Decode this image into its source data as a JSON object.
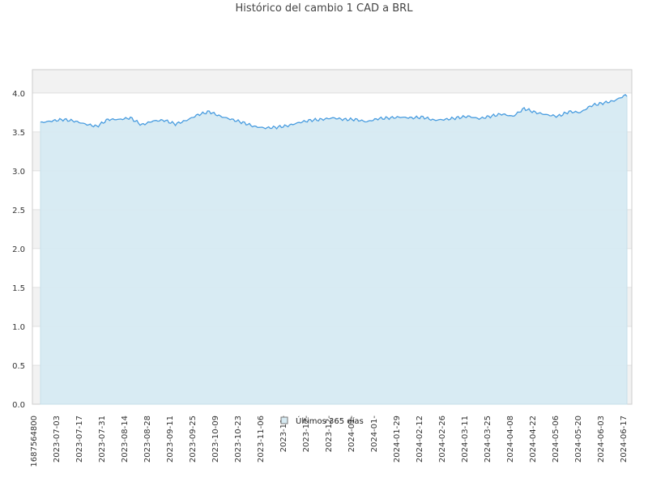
{
  "chart_data": {
    "type": "area",
    "title": "Histórico del cambio 1 CAD a BRL",
    "xlabel": "",
    "ylabel": "",
    "ylim": [
      0,
      4.3
    ],
    "yticks": [
      "0.0",
      "0.5",
      "1.0",
      "1.5",
      "2.0",
      "2.5",
      "3.0",
      "3.5",
      "4.0"
    ],
    "xtick_labels": [
      "1687564800",
      "2023-07-03",
      "2023-07-17",
      "2023-07-31",
      "2023-08-14",
      "2023-08-28",
      "2023-09-11",
      "2023-09-25",
      "2023-10-09",
      "2023-10-23",
      "2023-11-06",
      "2023-11-",
      "2023-12-",
      "2023-12-",
      "2024-01-",
      "2024-01-",
      "2024-01-29",
      "2024-02-12",
      "2024-02-26",
      "2024-03-11",
      "2024-03-25",
      "2024-04-08",
      "2024-04-22",
      "2024-05-06",
      "2024-05-20",
      "2024-06-03",
      "2024-06-17"
    ],
    "x_start": "2023-06-24",
    "x_end": "2024-06-23",
    "grid": true,
    "legend_position": "bottom-center",
    "colors": {
      "line": "#4a9de0",
      "fill": "#d6eaf2",
      "band": "#f2f2f2",
      "grid": "#e0e0e0"
    },
    "series": [
      {
        "name": "Últimos 365 días",
        "x": [
          "2023-06-24",
          "2023-07-01",
          "2023-07-08",
          "2023-07-15",
          "2023-07-22",
          "2023-07-29",
          "2023-08-05",
          "2023-08-12",
          "2023-08-19",
          "2023-08-26",
          "2023-09-02",
          "2023-09-09",
          "2023-09-16",
          "2023-09-23",
          "2023-09-30",
          "2023-10-07",
          "2023-10-14",
          "2023-10-21",
          "2023-10-28",
          "2023-11-04",
          "2023-11-11",
          "2023-11-18",
          "2023-11-25",
          "2023-12-02",
          "2023-12-09",
          "2023-12-16",
          "2023-12-23",
          "2023-12-30",
          "2024-01-06",
          "2024-01-13",
          "2024-01-20",
          "2024-01-27",
          "2024-02-03",
          "2024-02-10",
          "2024-02-17",
          "2024-02-24",
          "2024-03-02",
          "2024-03-09",
          "2024-03-16",
          "2024-03-23",
          "2024-03-30",
          "2024-04-06",
          "2024-04-13",
          "2024-04-20",
          "2024-04-27",
          "2024-05-04",
          "2024-05-11",
          "2024-05-18",
          "2024-05-25",
          "2024-06-01",
          "2024-06-08",
          "2024-06-15",
          "2024-06-22"
        ],
        "y": [
          3.62,
          3.64,
          3.66,
          3.64,
          3.6,
          3.57,
          3.66,
          3.66,
          3.68,
          3.59,
          3.64,
          3.65,
          3.6,
          3.65,
          3.72,
          3.76,
          3.7,
          3.66,
          3.62,
          3.57,
          3.55,
          3.56,
          3.58,
          3.62,
          3.65,
          3.66,
          3.68,
          3.66,
          3.66,
          3.63,
          3.67,
          3.68,
          3.69,
          3.68,
          3.69,
          3.65,
          3.66,
          3.68,
          3.7,
          3.67,
          3.7,
          3.73,
          3.7,
          3.8,
          3.75,
          3.72,
          3.7,
          3.76,
          3.75,
          3.84,
          3.87,
          3.9,
          3.97
        ]
      }
    ]
  }
}
